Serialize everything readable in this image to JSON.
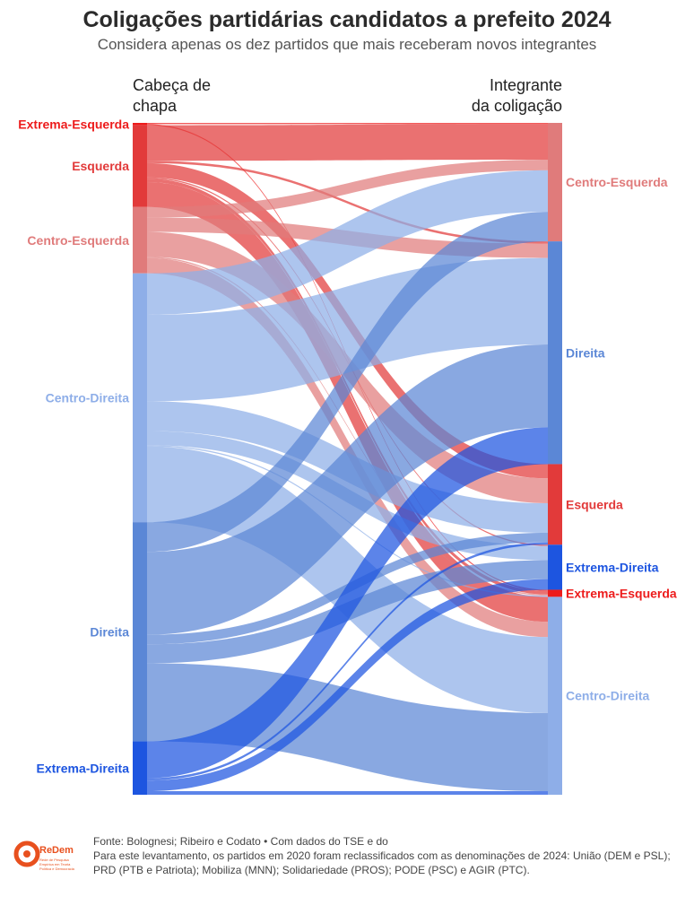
{
  "title": "Coligações partidárias candidatos a prefeito 2024",
  "subtitle": "Considera apenas os dez partidos que mais receberam novos integrantes",
  "source": {
    "line1": "Fonte: Bolognesi; Ribeiro e Codato • Com dados do TSE e do",
    "line2": "Para este levantamento, os partidos em 2020 foram reclassificados com as denominações de 2024: União (DEM e PSL); PRD (PTB e Patriota); Mobiliza (MNN); Solidariedade (PROS); PODE (PSC) e AGIR (PTC)."
  },
  "logo": {
    "name": "ReDem",
    "tagline": "Rede de Pesquisa Empírica em Teoria Política e Democracia"
  },
  "chart_data": {
    "type": "sankey",
    "left_header": [
      "Cabeça de",
      "chapa"
    ],
    "right_header": [
      "Integrante",
      "da coligação"
    ],
    "colors": {
      "Extrema-Esquerda": "#ed1c1c",
      "Esquerda": "#e23a3a",
      "Centro-Esquerda": "#e07b7b",
      "Centro-Direita": "#8eaee8",
      "Direita": "#5b87d6",
      "Extrema-Direita": "#1d55e0"
    },
    "left_nodes": [
      {
        "name": "Extrema-Esquerda",
        "value": 2
      },
      {
        "name": "Esquerda",
        "value": 69
      },
      {
        "name": "Centro-Esquerda",
        "value": 56
      },
      {
        "name": "Centro-Direita",
        "value": 210
      },
      {
        "name": "Direita",
        "value": 185
      },
      {
        "name": "Extrema-Direita",
        "value": 45
      }
    ],
    "right_nodes": [
      {
        "name": "Centro-Esquerda",
        "value": 100
      },
      {
        "name": "Direita",
        "value": 188
      },
      {
        "name": "Esquerda",
        "value": 68
      },
      {
        "name": "Extrema-Direita",
        "value": 38
      },
      {
        "name": "Extrema-Esquerda",
        "value": 6
      },
      {
        "name": "Centro-Direita",
        "value": 167
      }
    ],
    "flows": [
      {
        "source": "Extrema-Esquerda",
        "target": "Centro-Esquerda",
        "value": 1
      },
      {
        "source": "Extrema-Esquerda",
        "target": "Extrema-Esquerda",
        "value": 1
      },
      {
        "source": "Esquerda",
        "target": "Centro-Esquerda",
        "value": 30
      },
      {
        "source": "Esquerda",
        "target": "Direita",
        "value": 2
      },
      {
        "source": "Esquerda",
        "target": "Esquerda",
        "value": 12
      },
      {
        "source": "Esquerda",
        "target": "Extrema-Direita",
        "value": 1
      },
      {
        "source": "Esquerda",
        "target": "Extrema-Esquerda",
        "value": 3
      },
      {
        "source": "Esquerda",
        "target": "Centro-Direita",
        "value": 21
      },
      {
        "source": "Centro-Esquerda",
        "target": "Centro-Esquerda",
        "value": 9
      },
      {
        "source": "Centro-Esquerda",
        "target": "Direita",
        "value": 12
      },
      {
        "source": "Centro-Esquerda",
        "target": "Esquerda",
        "value": 21
      },
      {
        "source": "Centro-Esquerda",
        "target": "Extrema-Esquerda",
        "value": 1
      },
      {
        "source": "Centro-Esquerda",
        "target": "Centro-Direita",
        "value": 13
      },
      {
        "source": "Centro-Direita",
        "target": "Centro-Esquerda",
        "value": 35
      },
      {
        "source": "Centro-Direita",
        "target": "Direita",
        "value": 73
      },
      {
        "source": "Centro-Direita",
        "target": "Esquerda",
        "value": 25
      },
      {
        "source": "Centro-Direita",
        "target": "Extrema-Direita",
        "value": 12
      },
      {
        "source": "Centro-Direita",
        "target": "Extrema-Esquerda",
        "value": 1
      },
      {
        "source": "Centro-Direita",
        "target": "Centro-Direita",
        "value": 64
      },
      {
        "source": "Direita",
        "target": "Centro-Esquerda",
        "value": 25
      },
      {
        "source": "Direita",
        "target": "Direita",
        "value": 70
      },
      {
        "source": "Direita",
        "target": "Esquerda",
        "value": 8
      },
      {
        "source": "Direita",
        "target": "Extrema-Direita",
        "value": 16
      },
      {
        "source": "Direita",
        "target": "Centro-Direita",
        "value": 66
      },
      {
        "source": "Extrema-Direita",
        "target": "Direita",
        "value": 31
      },
      {
        "source": "Extrema-Direita",
        "target": "Esquerda",
        "value": 2
      },
      {
        "source": "Extrema-Direita",
        "target": "Extrema-Direita",
        "value": 9
      },
      {
        "source": "Extrema-Direita",
        "target": "Centro-Direita",
        "value": 3
      }
    ]
  }
}
